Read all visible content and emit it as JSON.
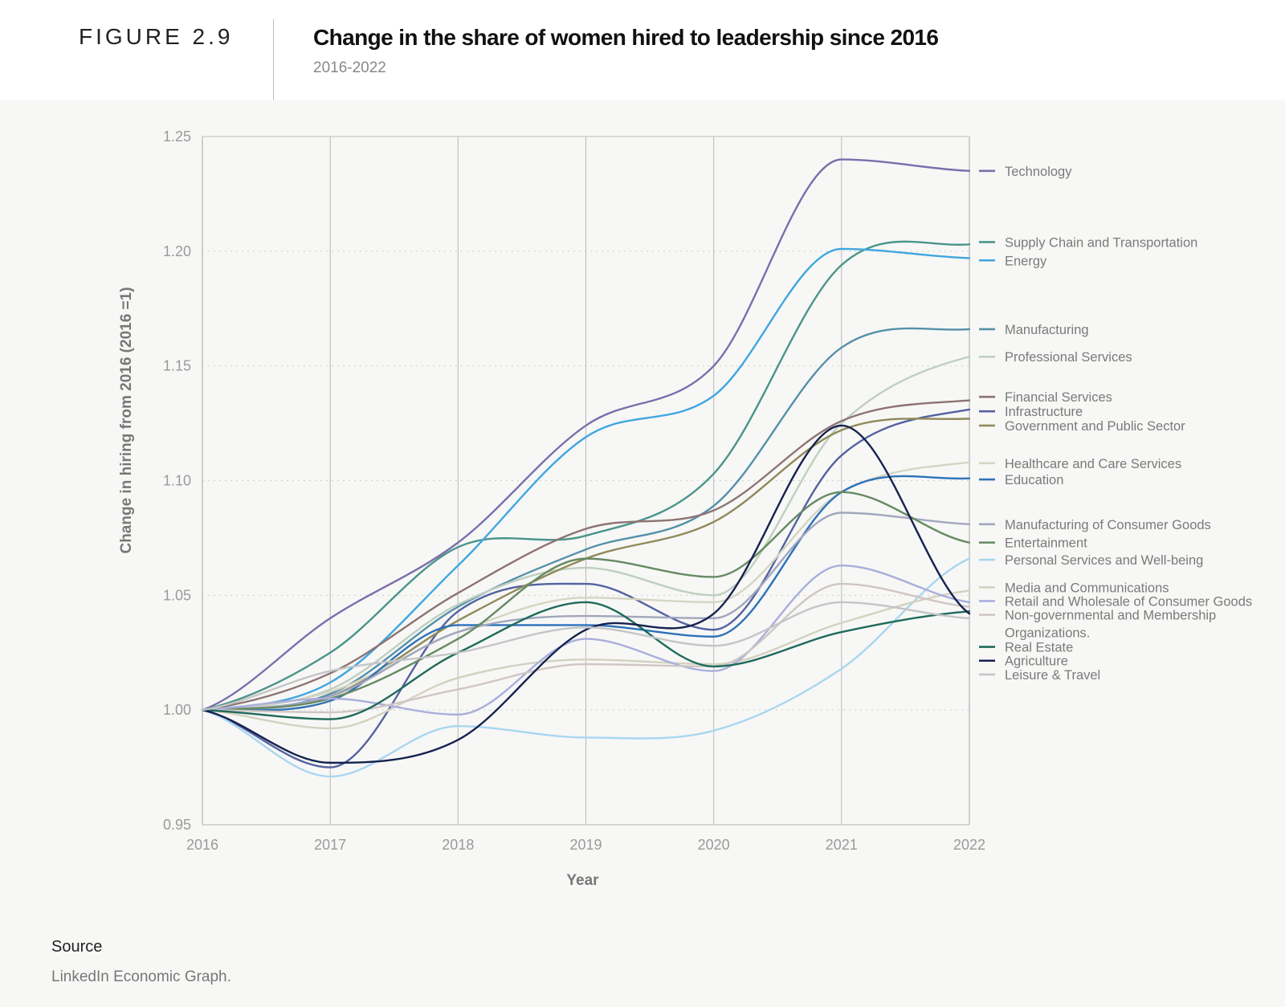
{
  "header": {
    "figure_label": "FIGURE 2.9",
    "title": "Change in the share of women hired to leadership since 2016",
    "subtitle": "2016-2022"
  },
  "source": {
    "label": "Source",
    "text": "LinkedIn Economic Graph."
  },
  "chart_data": {
    "type": "line",
    "title": "Change in the share of women hired to leadership since 2016",
    "subtitle": "2016-2022",
    "xlabel": "Year",
    "ylabel": "Change in hiring from 2016 (2016 =1)",
    "x": [
      "2016",
      "2017",
      "2018",
      "2019",
      "2020",
      "2021",
      "2022"
    ],
    "ylim": [
      0.95,
      1.25
    ],
    "yticks": [
      "0.95",
      "1.00",
      "1.05",
      "1.10",
      "1.15",
      "1.20",
      "1.25"
    ],
    "grid": "horizontal dotted, vertical at each year",
    "legend_position": "right",
    "series": [
      {
        "name": "Technology",
        "color": "#7a6fab",
        "values": [
          1.0,
          1.04,
          1.073,
          1.124,
          1.15,
          1.24,
          1.235
        ]
      },
      {
        "name": "Supply Chain and Transportation",
        "color": "#4a958a",
        "values": [
          1.0,
          1.025,
          1.071,
          1.076,
          1.103,
          1.194,
          1.203
        ]
      },
      {
        "name": "Energy",
        "color": "#3ea6e0",
        "values": [
          1.0,
          1.012,
          1.063,
          1.119,
          1.137,
          1.201,
          1.197
        ]
      },
      {
        "name": "Manufacturing",
        "color": "#5590a8",
        "values": [
          1.0,
          1.007,
          1.045,
          1.07,
          1.089,
          1.158,
          1.166
        ]
      },
      {
        "name": "Professional Services",
        "color": "#bfcfc0",
        "values": [
          1.0,
          1.009,
          1.046,
          1.062,
          1.05,
          1.125,
          1.154
        ]
      },
      {
        "name": "Financial Services",
        "color": "#8c7473",
        "values": [
          1.0,
          1.016,
          1.051,
          1.079,
          1.087,
          1.126,
          1.135
        ]
      },
      {
        "name": "Infrastructure",
        "color": "#5462a0",
        "values": [
          1.0,
          0.975,
          1.043,
          1.055,
          1.035,
          1.111,
          1.131
        ]
      },
      {
        "name": "Government and Public Sector",
        "color": "#908a5a",
        "values": [
          1.0,
          1.006,
          1.039,
          1.066,
          1.082,
          1.122,
          1.127
        ]
      },
      {
        "name": "Healthcare and Care Services",
        "color": "#d6d5c2",
        "values": [
          1.0,
          1.008,
          1.034,
          1.049,
          1.047,
          1.095,
          1.108
        ]
      },
      {
        "name": "Education",
        "color": "#2d72b8",
        "values": [
          1.0,
          1.004,
          1.037,
          1.037,
          1.032,
          1.095,
          1.101
        ]
      },
      {
        "name": "Manufacturing of Consumer Goods",
        "color": "#a2a6bd",
        "values": [
          1.0,
          1.006,
          1.034,
          1.041,
          1.04,
          1.086,
          1.081
        ]
      },
      {
        "name": "Entertainment",
        "color": "#668a62",
        "values": [
          1.0,
          1.005,
          1.031,
          1.066,
          1.058,
          1.095,
          1.073
        ]
      },
      {
        "name": "Personal Services and Well-being",
        "color": "#a9d6ef",
        "values": [
          1.0,
          0.971,
          0.993,
          0.988,
          0.991,
          1.018,
          1.066
        ]
      },
      {
        "name": "Media and Communications",
        "color": "#d3d2c0",
        "values": [
          1.0,
          0.992,
          1.014,
          1.022,
          1.02,
          1.038,
          1.052
        ]
      },
      {
        "name": "Retail and Wholesale of Consumer Goods",
        "color": "#a9aedb",
        "values": [
          1.0,
          1.005,
          0.998,
          1.031,
          1.017,
          1.063,
          1.047
        ]
      },
      {
        "name": "Non-governmental and Membership Organizations.",
        "color": "#cfc6c4",
        "values": [
          1.0,
          0.999,
          1.009,
          1.02,
          1.019,
          1.055,
          1.045
        ]
      },
      {
        "name": "Real Estate",
        "color": "#1f6a5c",
        "values": [
          1.0,
          0.996,
          1.025,
          1.047,
          1.019,
          1.034,
          1.043
        ]
      },
      {
        "name": "Agriculture",
        "color": "#16224f",
        "values": [
          1.0,
          0.977,
          0.987,
          1.035,
          1.042,
          1.124,
          1.042
        ]
      },
      {
        "name": "Leisure & Travel",
        "color": "#c5c5c7",
        "values": [
          1.0,
          1.017,
          1.025,
          1.036,
          1.028,
          1.047,
          1.04
        ]
      }
    ],
    "legend": [
      {
        "label": "Technology",
        "series": 0,
        "anchor_value": 1.235
      },
      {
        "label": "Supply Chain and Transportation",
        "series": 1,
        "anchor_value": 1.204
      },
      {
        "label": "Energy",
        "series": 2,
        "anchor_value": 1.196
      },
      {
        "label": "Manufacturing",
        "series": 3,
        "anchor_value": 1.166
      },
      {
        "label": "Professional Services",
        "series": 4,
        "anchor_value": 1.154
      },
      {
        "label": "Financial Services",
        "series": 5,
        "anchor_value": 1.1365
      },
      {
        "label": "Infrastructure",
        "series": 6,
        "anchor_value": 1.1302
      },
      {
        "label": "Government and Public Sector",
        "series": 7,
        "anchor_value": 1.124
      },
      {
        "label": "Healthcare and Care Services",
        "series": 8,
        "anchor_value": 1.1076
      },
      {
        "label": "Education",
        "series": 9,
        "anchor_value": 1.1005
      },
      {
        "label": "Manufacturing of Consumer Goods",
        "series": 10,
        "anchor_value": 1.081
      },
      {
        "label": "Entertainment",
        "series": 11,
        "anchor_value": 1.073
      },
      {
        "label": "Personal Services and Well-being",
        "series": 12,
        "anchor_value": 1.0655
      },
      {
        "label": "Media and Communications",
        "series": 13,
        "anchor_value": 1.0535
      },
      {
        "label": "Retail and Wholesale of Consumer Goods",
        "series": 14,
        "anchor_value": 1.0475
      },
      {
        "label": "Non-governmental and Membership",
        "label_line2": "Organizations.",
        "series": 15,
        "anchor_value": 1.0415
      },
      {
        "label": "Real Estate",
        "series": 16,
        "anchor_value": 1.0275
      },
      {
        "label": "Agriculture",
        "series": 17,
        "anchor_value": 1.0215
      },
      {
        "label": "Leisure & Travel",
        "series": 18,
        "anchor_value": 1.0155
      }
    ]
  }
}
